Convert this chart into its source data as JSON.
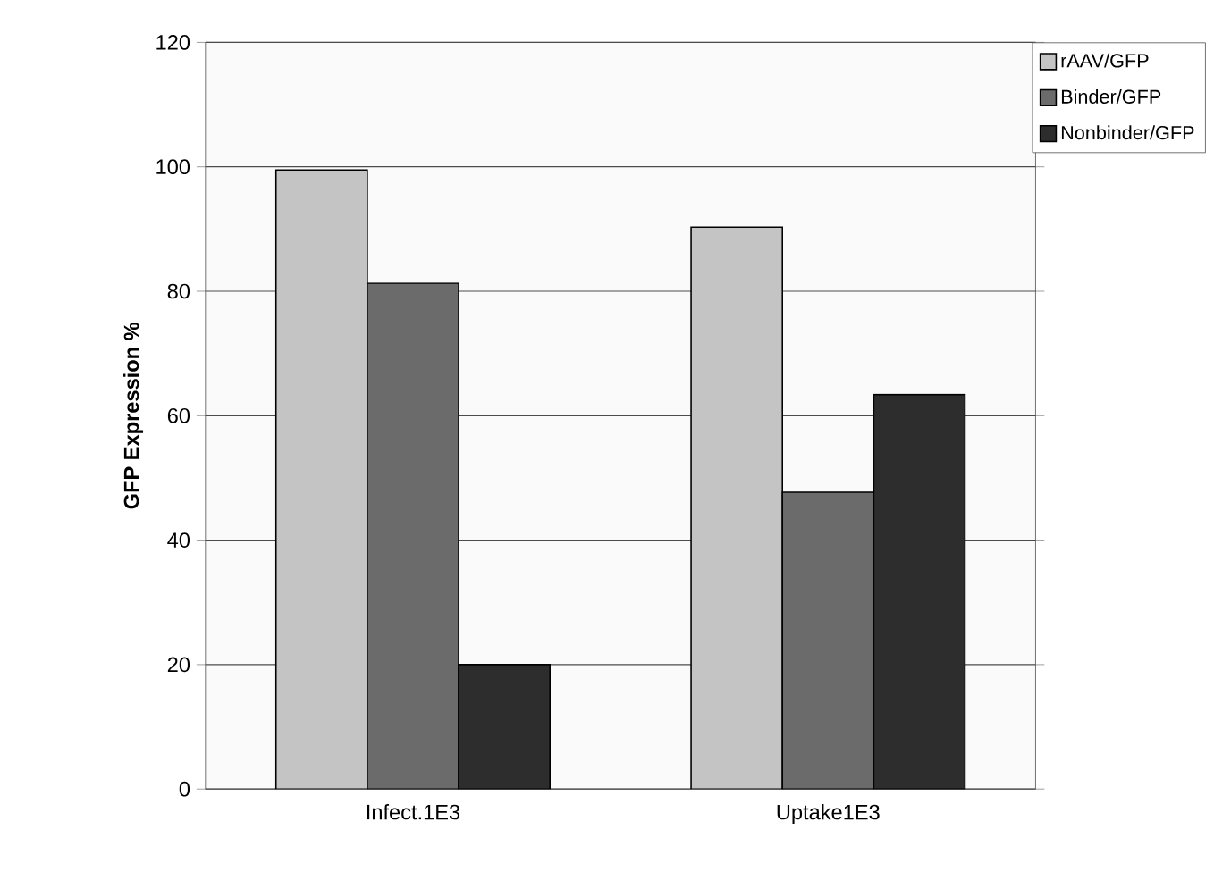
{
  "chart_data": {
    "type": "bar",
    "ylabel": "GFP Expression %",
    "categories": [
      "Infect.1E3",
      "Uptake1E3"
    ],
    "series": [
      {
        "name": "rAAV/GFP",
        "color": "#c4c4c4",
        "values": [
          99.5,
          90.3
        ]
      },
      {
        "name": "Binder/GFP",
        "color": "#6b6b6b",
        "values": [
          81.3,
          47.7
        ]
      },
      {
        "name": "Nonbinder/GFP",
        "color": "#2d2d2d",
        "values": [
          20,
          63.4
        ]
      }
    ],
    "ylim": [
      0,
      120
    ],
    "yticks": [
      0,
      20,
      40,
      60,
      80,
      100,
      120
    ],
    "grid": "y",
    "legend": "top right"
  }
}
